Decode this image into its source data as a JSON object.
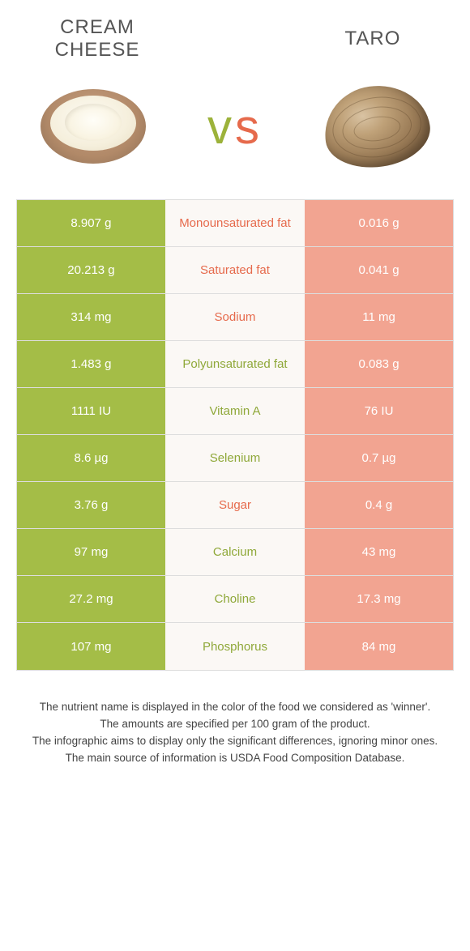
{
  "colors": {
    "green_strong": "#a4bd47",
    "green_weak": "#c6d58b",
    "orange_strong": "#e66a4c",
    "orange_weak": "#f2a491",
    "text_green": "#8fa839",
    "text_orange": "#e66a4c",
    "mid_bg": "#fbf8f5"
  },
  "header": {
    "food_a": "CREAM CHEESE",
    "food_b": "TARO",
    "vs_v": "v",
    "vs_s": "s"
  },
  "rows": [
    {
      "a": "8.907 g",
      "label": "Monounsaturated fat",
      "b": "0.016 g",
      "winner": "a",
      "label_side": "b"
    },
    {
      "a": "20.213 g",
      "label": "Saturated fat",
      "b": "0.041 g",
      "winner": "a",
      "label_side": "b"
    },
    {
      "a": "314 mg",
      "label": "Sodium",
      "b": "11 mg",
      "winner": "a",
      "label_side": "b"
    },
    {
      "a": "1.483 g",
      "label": "Polyunsaturated fat",
      "b": "0.083 g",
      "winner": "a",
      "label_side": "a"
    },
    {
      "a": "1111 IU",
      "label": "Vitamin A",
      "b": "76 IU",
      "winner": "a",
      "label_side": "a"
    },
    {
      "a": "8.6 µg",
      "label": "Selenium",
      "b": "0.7 µg",
      "winner": "a",
      "label_side": "a"
    },
    {
      "a": "3.76 g",
      "label": "Sugar",
      "b": "0.4 g",
      "winner": "a",
      "label_side": "b"
    },
    {
      "a": "97 mg",
      "label": "Calcium",
      "b": "43 mg",
      "winner": "a",
      "label_side": "a"
    },
    {
      "a": "27.2 mg",
      "label": "Choline",
      "b": "17.3 mg",
      "winner": "a",
      "label_side": "a"
    },
    {
      "a": "107 mg",
      "label": "Phosphorus",
      "b": "84 mg",
      "winner": "a",
      "label_side": "a"
    }
  ],
  "footer": {
    "line1": "The nutrient name is displayed in the color of the food we considered as 'winner'.",
    "line2": "The amounts are specified per 100 gram of the product.",
    "line3": "The infographic aims to display only the significant differences, ignoring minor ones.",
    "line4": "The main source of information is USDA Food Composition Database."
  }
}
